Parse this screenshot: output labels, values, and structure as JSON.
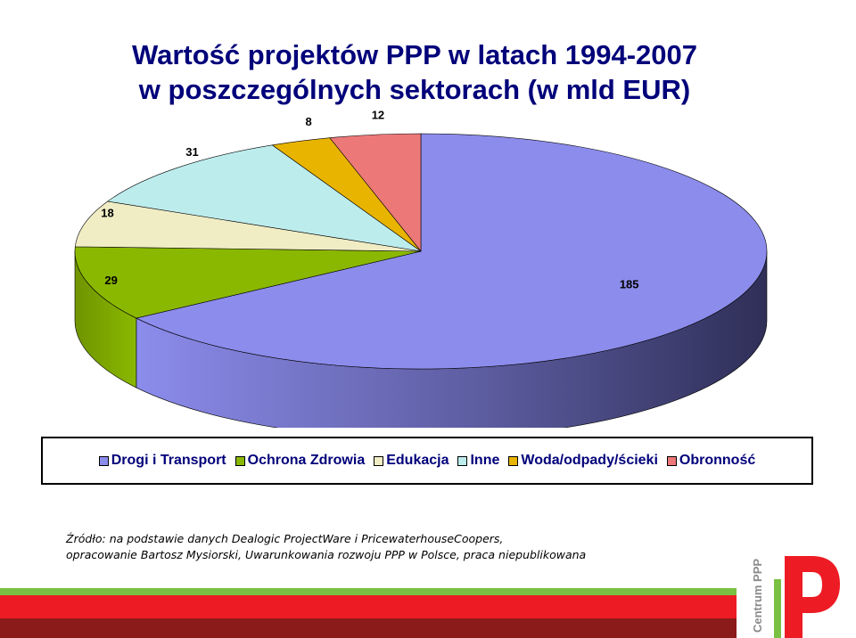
{
  "title": {
    "line1": "Wartość projektów PPP w latach 1994-2007",
    "line2": "w poszczególnych sektorach (w mld EUR)"
  },
  "chart_data": {
    "type": "pie",
    "three_d": true,
    "title": "Wartość projektów PPP w latach 1994-2007 w poszczególnych sektorach (w mld EUR)",
    "legend_placement": "bottom",
    "slices": [
      {
        "label": "Drogi i Transport",
        "value": 185,
        "color": "#8c8cec"
      },
      {
        "label": "Ochrona Zdrowia",
        "value": 29,
        "color": "#8ab800"
      },
      {
        "label": "Edukacja",
        "value": 18,
        "color": "#f0ecc4"
      },
      {
        "label": "Inne",
        "value": 31,
        "color": "#bdeced"
      },
      {
        "label": "Woda/odpady/ścieki",
        "value": 8,
        "color": "#e8b400"
      },
      {
        "label": "Obronność",
        "value": 12,
        "color": "#ec7878"
      }
    ]
  },
  "source": {
    "line1": "Źródło: na podstawie danych Dealogic ProjectWare i PricewaterhouseCoopers,",
    "line2": "opracowanie Bartosz Mysiorski, Uwarunkowania  rozwoju PPP w Polsce, praca niepublikowana"
  },
  "logo": {
    "text": "Centrum PPP",
    "letter": "P"
  },
  "colors": {
    "bar_green": "#7ac143",
    "bar_red": "#ed1c24",
    "bar_dark": "#8b1a1a"
  }
}
